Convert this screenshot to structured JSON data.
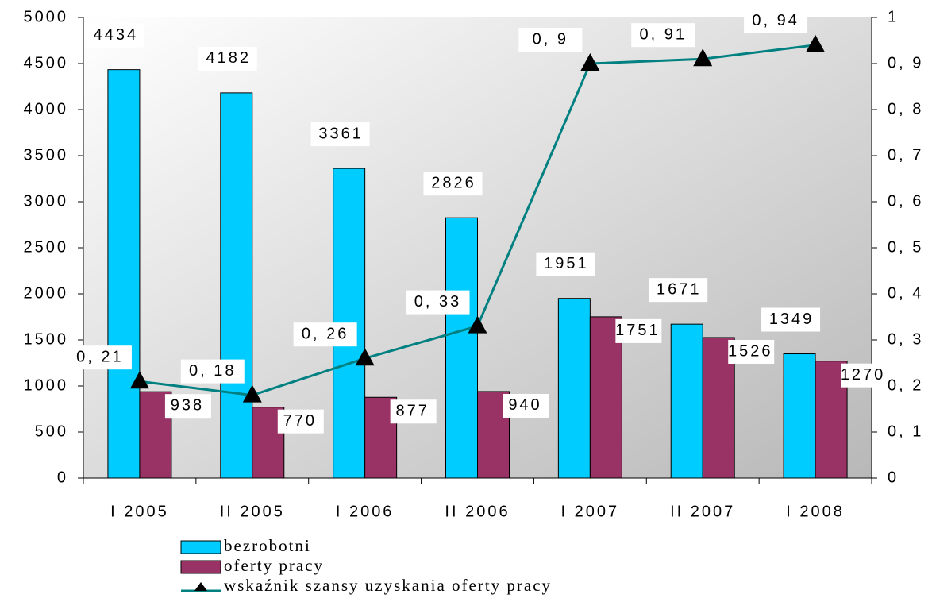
{
  "chart_data": {
    "type": "bar_line",
    "categories": [
      "I 2005",
      "II 2005",
      "I 2006",
      "II 2006",
      "I 2007",
      "II 2007",
      "I 2008"
    ],
    "series": [
      {
        "name": "bezrobotni",
        "color": "#00ccff",
        "type": "bar",
        "values": [
          4434,
          4182,
          3361,
          2826,
          1951,
          1671,
          1349
        ]
      },
      {
        "name": "oferty pracy",
        "color": "#993366",
        "type": "bar",
        "values": [
          938,
          770,
          877,
          940,
          1751,
          1526,
          1270
        ]
      },
      {
        "name": "wskaźnik szansy uzyskania oferty pracy",
        "color": "#008080",
        "type": "line",
        "axis": "y2",
        "values": [
          0.21,
          0.18,
          0.26,
          0.33,
          0.9,
          0.91,
          0.94
        ],
        "value_labels": [
          "0, 21",
          "0, 18",
          "0, 26",
          "0, 33",
          "0, 9",
          "0, 91",
          "0, 94"
        ]
      }
    ],
    "ylim": [
      0,
      5000
    ],
    "yticks": [
      0,
      500,
      1000,
      1500,
      2000,
      2500,
      3000,
      3500,
      4000,
      4500,
      5000
    ],
    "y2lim": [
      0,
      1
    ],
    "y2ticks": [
      0,
      {
        "value": 0.1,
        "label": "0, 1"
      },
      {
        "value": 0.2,
        "label": "0, 2"
      },
      {
        "value": 0.3,
        "label": "0, 3"
      },
      {
        "value": 0.4,
        "label": "0, 4"
      },
      {
        "value": 0.5,
        "label": "0, 5"
      },
      {
        "value": 0.6,
        "label": "0, 6"
      },
      {
        "value": 0.7,
        "label": "0, 7"
      },
      {
        "value": 0.8,
        "label": "0, 8"
      },
      {
        "value": 0.9,
        "label": "0, 9"
      },
      1
    ],
    "grid": false,
    "legend": "bottom"
  }
}
